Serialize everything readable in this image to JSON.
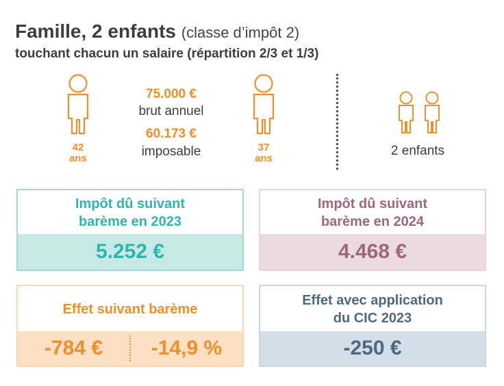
{
  "header": {
    "title": "Famille, 2 enfants",
    "title_suffix": "(classe d’impôt 2)",
    "subtitle": "touchant chacun un salaire (répartition 2/3 et 1/3)"
  },
  "household": {
    "adult1_age": "42",
    "adult2_age": "37",
    "age_unit": "ans",
    "gross_amount": "75.000 €",
    "gross_label": "brut annuel",
    "taxable_amount": "60.173 €",
    "taxable_label": "imposable",
    "children_label": "2 enfants"
  },
  "cards": {
    "tax_2023": {
      "line1": "Impôt dû suivant",
      "line2": "barème en 2023",
      "value": "5.252 €"
    },
    "tax_2024": {
      "line1": "Impôt dû suivant",
      "line2": "barème en 2024",
      "value": "4.468 €"
    },
    "effect_scale": {
      "label": "Effet suivant barème",
      "value_amount": "-784 €",
      "value_percent": "-14,9 %"
    },
    "effect_cic": {
      "line1": "Effet avec application",
      "line2": "du CIC 2023",
      "value": "-250 €"
    }
  },
  "colors": {
    "orange": "#ef8f2b",
    "teal": "#2db7ac",
    "mauve": "#a0667c",
    "slate": "#4b6a80"
  }
}
